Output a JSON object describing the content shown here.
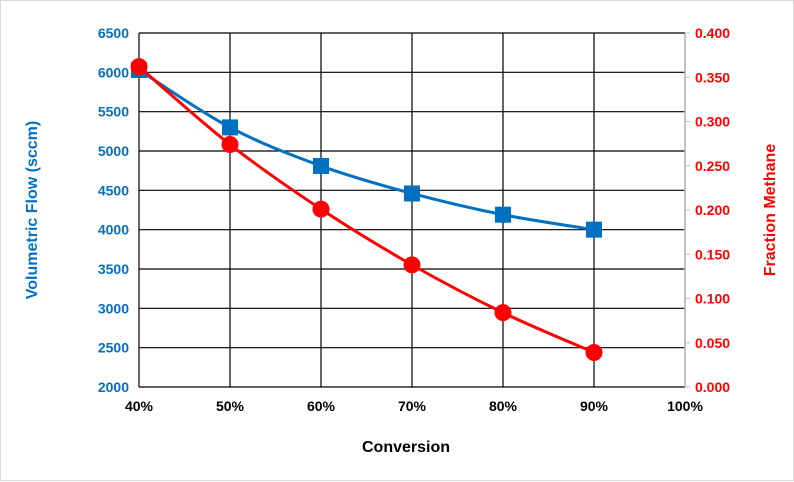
{
  "chart_data": {
    "type": "line",
    "title": "",
    "xlabel": "Conversion",
    "ylabel": "Volumetric Flow (sccm)",
    "y2label": "Fraction Methane",
    "x_ticks": [
      "40%",
      "50%",
      "60%",
      "70%",
      "80%",
      "90%",
      "100%"
    ],
    "xlim": [
      0.4,
      1.0
    ],
    "ylim": [
      2000,
      6500
    ],
    "y_ticks": [
      "2000",
      "2500",
      "3000",
      "3500",
      "4000",
      "4500",
      "5000",
      "5500",
      "6000",
      "6500"
    ],
    "y2lim": [
      0.0,
      0.4
    ],
    "y2_ticks": [
      "0.000",
      "0.050",
      "0.100",
      "0.150",
      "0.200",
      "0.250",
      "0.300",
      "0.350",
      "0.400"
    ],
    "grid": true,
    "legend": "none",
    "series": [
      {
        "axis": "left",
        "color": "#0070c0",
        "marker": "square",
        "x": [
          0.4,
          0.5,
          0.6,
          0.7,
          0.8,
          0.9
        ],
        "values": [
          6030,
          5300,
          4810,
          4460,
          4190,
          4000
        ]
      },
      {
        "axis": "right",
        "color": "#ff0000",
        "marker": "circle",
        "x": [
          0.4,
          0.5,
          0.6,
          0.7,
          0.8,
          0.9
        ],
        "values": [
          0.362,
          0.274,
          0.201,
          0.138,
          0.084,
          0.039
        ]
      }
    ]
  }
}
